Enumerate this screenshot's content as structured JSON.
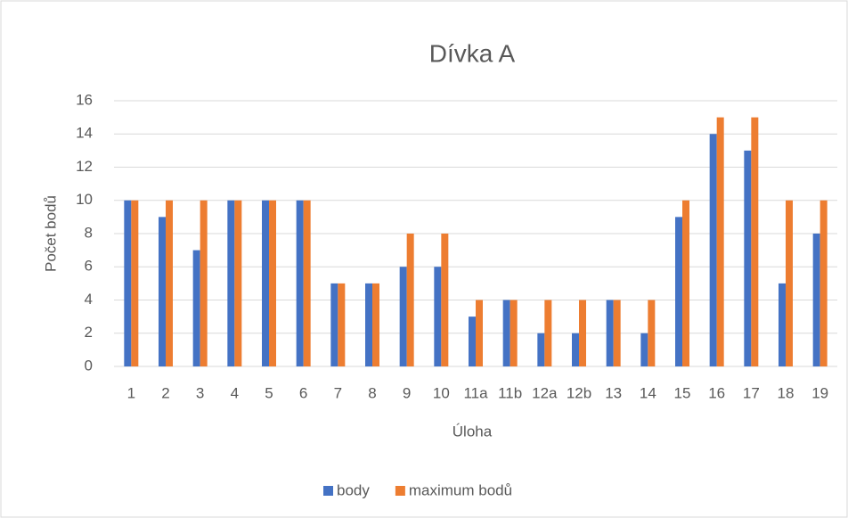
{
  "chart_data": {
    "type": "bar",
    "title": "Dívka A",
    "x_label": "Úloha",
    "y_label": "Počet bodů",
    "categories": [
      "1",
      "2",
      "3",
      "4",
      "5",
      "6",
      "7",
      "8",
      "9",
      "10",
      "11a",
      "11b",
      "12a",
      "12b",
      "13",
      "14",
      "15",
      "16",
      "17",
      "18",
      "19"
    ],
    "series": [
      {
        "name": "body",
        "color": "#4472c4",
        "values": [
          10,
          9,
          7,
          10,
          10,
          10,
          5,
          5,
          6,
          6,
          3,
          4,
          2,
          2,
          4,
          2,
          9,
          14,
          13,
          5,
          8
        ]
      },
      {
        "name": "maximum bodů",
        "color": "#ed7d31",
        "values": [
          10,
          10,
          10,
          10,
          10,
          10,
          5,
          5,
          8,
          8,
          4,
          4,
          4,
          4,
          4,
          4,
          10,
          15,
          15,
          10,
          10
        ]
      }
    ],
    "ylim": [
      0,
      16
    ],
    "yticks": [
      0,
      2,
      4,
      6,
      8,
      10,
      12,
      14,
      16
    ],
    "grid": true,
    "legend": "bottom"
  }
}
